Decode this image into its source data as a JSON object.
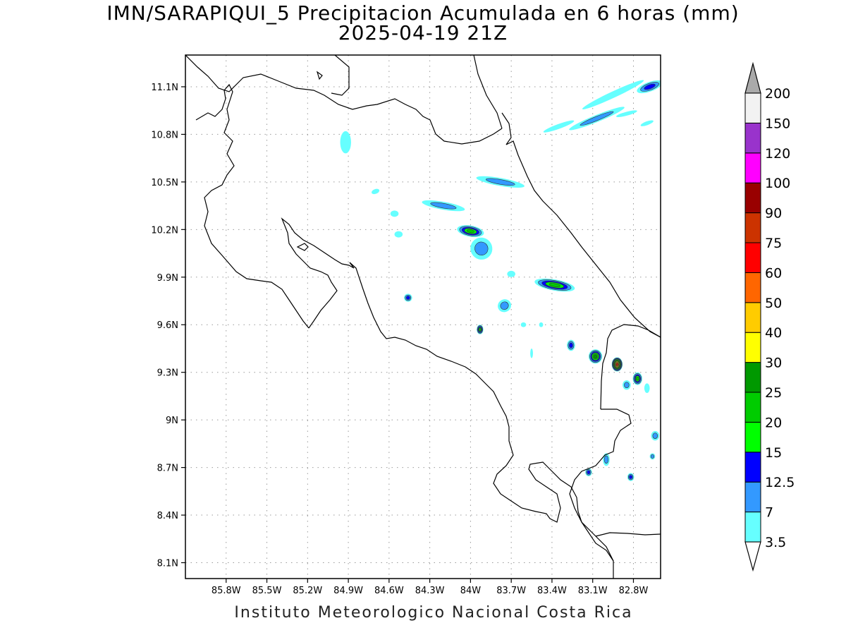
{
  "header": {
    "title": "IMN/SARAPIQUI_5 Precipitacion Acumulada en 6 horas (mm)",
    "valid_time": "2025-04-19 21Z"
  },
  "footer": {
    "credit": "Instituto Meteorologico Nacional Costa Rica"
  },
  "map": {
    "lon_range": [
      -86.1,
      -82.6
    ],
    "lat_range": [
      8.0,
      11.3
    ],
    "x_ticks": [
      {
        "value": -85.8,
        "label": "85.8W"
      },
      {
        "value": -85.5,
        "label": "85.5W"
      },
      {
        "value": -85.2,
        "label": "85.2W"
      },
      {
        "value": -84.9,
        "label": "84.9W"
      },
      {
        "value": -84.6,
        "label": "84.6W"
      },
      {
        "value": -84.3,
        "label": "84.3W"
      },
      {
        "value": -84.0,
        "label": "84W"
      },
      {
        "value": -83.7,
        "label": "83.7W"
      },
      {
        "value": -83.4,
        "label": "83.4W"
      },
      {
        "value": -83.1,
        "label": "83.1W"
      },
      {
        "value": -82.8,
        "label": "82.8W"
      }
    ],
    "y_ticks": [
      {
        "value": 11.1,
        "label": "11.1N"
      },
      {
        "value": 10.8,
        "label": "10.8N"
      },
      {
        "value": 10.5,
        "label": "10.5N"
      },
      {
        "value": 10.2,
        "label": "10.2N"
      },
      {
        "value": 9.9,
        "label": "9.9N"
      },
      {
        "value": 9.6,
        "label": "9.6N"
      },
      {
        "value": 9.3,
        "label": "9.3N"
      },
      {
        "value": 9.0,
        "label": "9N"
      },
      {
        "value": 8.7,
        "label": "8.7N"
      },
      {
        "value": 8.4,
        "label": "8.4N"
      },
      {
        "value": 8.1,
        "label": "8.1N"
      }
    ],
    "grid": true,
    "precip_cells": [
      {
        "lon": -83.07,
        "lat": 10.9,
        "rx": 0.22,
        "ry": 0.022,
        "rot": -22,
        "max": 7
      },
      {
        "lon": -82.95,
        "lat": 11.05,
        "rx": 0.25,
        "ry": 0.02,
        "rot": -25,
        "max": 3.5
      },
      {
        "lon": -82.68,
        "lat": 11.1,
        "rx": 0.1,
        "ry": 0.03,
        "rot": -20,
        "max": 12.5
      },
      {
        "lon": -83.35,
        "lat": 10.85,
        "rx": 0.12,
        "ry": 0.015,
        "rot": -20,
        "max": 3.5
      },
      {
        "lon": -82.85,
        "lat": 10.93,
        "rx": 0.08,
        "ry": 0.012,
        "rot": -15,
        "max": 3.5
      },
      {
        "lon": -82.7,
        "lat": 10.87,
        "rx": 0.05,
        "ry": 0.012,
        "rot": -20,
        "max": 3.5
      },
      {
        "lon": -84.92,
        "lat": 10.75,
        "rx": 0.04,
        "ry": 0.07,
        "rot": 0,
        "max": 3.5
      },
      {
        "lon": -83.78,
        "lat": 10.5,
        "rx": 0.18,
        "ry": 0.025,
        "rot": 10,
        "max": 7
      },
      {
        "lon": -84.2,
        "lat": 10.35,
        "rx": 0.16,
        "ry": 0.025,
        "rot": 10,
        "max": 7
      },
      {
        "lon": -84.56,
        "lat": 10.3,
        "rx": 0.03,
        "ry": 0.02,
        "rot": 0,
        "max": 3.5
      },
      {
        "lon": -84.0,
        "lat": 10.19,
        "rx": 0.1,
        "ry": 0.035,
        "rot": 10,
        "max": 20
      },
      {
        "lon": -83.92,
        "lat": 10.08,
        "rx": 0.08,
        "ry": 0.07,
        "rot": -40,
        "max": 7
      },
      {
        "lon": -84.53,
        "lat": 10.17,
        "rx": 0.03,
        "ry": 0.02,
        "rot": 0,
        "max": 3.5
      },
      {
        "lon": -83.38,
        "lat": 9.85,
        "rx": 0.15,
        "ry": 0.035,
        "rot": 10,
        "max": 20
      },
      {
        "lon": -83.7,
        "lat": 9.92,
        "rx": 0.03,
        "ry": 0.02,
        "rot": 0,
        "max": 3.5
      },
      {
        "lon": -83.75,
        "lat": 9.72,
        "rx": 0.05,
        "ry": 0.04,
        "rot": -30,
        "max": 7
      },
      {
        "lon": -84.46,
        "lat": 9.77,
        "rx": 0.03,
        "ry": 0.025,
        "rot": 0,
        "max": 12.5
      },
      {
        "lon": -83.93,
        "lat": 9.57,
        "rx": 0.025,
        "ry": 0.03,
        "rot": 0,
        "max": 20
      },
      {
        "lon": -83.26,
        "lat": 9.47,
        "rx": 0.03,
        "ry": 0.035,
        "rot": 0,
        "max": 12.5
      },
      {
        "lon": -83.08,
        "lat": 9.4,
        "rx": 0.05,
        "ry": 0.045,
        "rot": 0,
        "max": 25
      },
      {
        "lon": -82.92,
        "lat": 9.35,
        "rx": 0.04,
        "ry": 0.045,
        "rot": 0,
        "max": 60
      },
      {
        "lon": -82.77,
        "lat": 9.26,
        "rx": 0.035,
        "ry": 0.04,
        "rot": 0,
        "max": 20
      },
      {
        "lon": -82.85,
        "lat": 9.22,
        "rx": 0.03,
        "ry": 0.03,
        "rot": 0,
        "max": 7
      },
      {
        "lon": -82.7,
        "lat": 9.2,
        "rx": 0.02,
        "ry": 0.03,
        "rot": 0,
        "max": 3.5
      },
      {
        "lon": -82.64,
        "lat": 8.9,
        "rx": 0.03,
        "ry": 0.03,
        "rot": 0,
        "max": 7
      },
      {
        "lon": -83.0,
        "lat": 8.75,
        "rx": 0.025,
        "ry": 0.04,
        "rot": 0,
        "max": 7
      },
      {
        "lon": -83.13,
        "lat": 8.67,
        "rx": 0.025,
        "ry": 0.025,
        "rot": 0,
        "max": 12.5
      },
      {
        "lon": -82.82,
        "lat": 8.64,
        "rx": 0.025,
        "ry": 0.025,
        "rot": 0,
        "max": 12.5
      },
      {
        "lon": -82.66,
        "lat": 8.77,
        "rx": 0.02,
        "ry": 0.02,
        "rot": 0,
        "max": 7
      },
      {
        "lon": -83.48,
        "lat": 9.6,
        "rx": 0.015,
        "ry": 0.015,
        "rot": 0,
        "max": 3.5
      },
      {
        "lon": -83.61,
        "lat": 9.6,
        "rx": 0.02,
        "ry": 0.015,
        "rot": 0,
        "max": 3.5
      },
      {
        "lon": -83.55,
        "lat": 9.42,
        "rx": 0.01,
        "ry": 0.03,
        "rot": 0,
        "max": 3.5
      },
      {
        "lon": -84.7,
        "lat": 10.44,
        "rx": 0.03,
        "ry": 0.015,
        "rot": -20,
        "max": 3.5
      }
    ]
  },
  "colorbar": {
    "bins": [
      {
        "label": "3.5",
        "color": "#66ffff"
      },
      {
        "label": "7",
        "color": "#3399ff"
      },
      {
        "label": "12.5",
        "color": "#0000ff"
      },
      {
        "label": "15",
        "color": "#00ff00"
      },
      {
        "label": "20",
        "color": "#00cc00"
      },
      {
        "label": "25",
        "color": "#009900"
      },
      {
        "label": "30",
        "color": "#ffff00"
      },
      {
        "label": "40",
        "color": "#ffcc00"
      },
      {
        "label": "50",
        "color": "#ff6600"
      },
      {
        "label": "60",
        "color": "#ff0000"
      },
      {
        "label": "75",
        "color": "#cc3300"
      },
      {
        "label": "90",
        "color": "#990000"
      },
      {
        "label": "100",
        "color": "#ff00ff"
      },
      {
        "label": "120",
        "color": "#9933cc"
      },
      {
        "label": "150",
        "color": "#f2f2f2"
      },
      {
        "label": "200",
        "color": "#aaaaaa"
      }
    ]
  }
}
